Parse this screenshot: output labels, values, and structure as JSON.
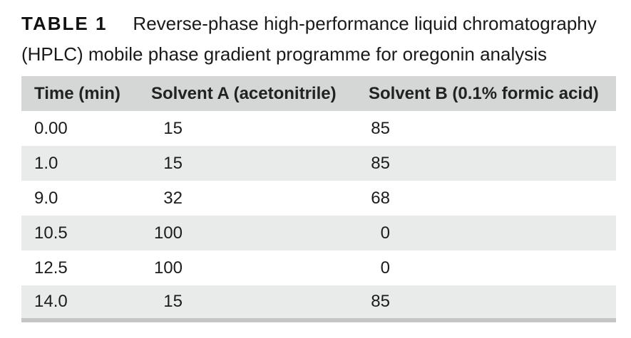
{
  "caption": {
    "label": "TABLE 1",
    "text": "Reverse-phase high-performance liquid chromatography (HPLC) mobile phase gradient programme for oregonin analysis"
  },
  "table": {
    "columns": [
      "Time (min)",
      "Solvent A (acetonitrile)",
      "Solvent B (0.1% formic acid)"
    ],
    "rows": [
      [
        "0.00",
        "15",
        "85"
      ],
      [
        "1.0",
        "15",
        "85"
      ],
      [
        "9.0",
        "32",
        "68"
      ],
      [
        "10.5",
        "100",
        "0"
      ],
      [
        "12.5",
        "100",
        "0"
      ],
      [
        "14.0",
        "15",
        "85"
      ]
    ]
  },
  "colors": {
    "header_background": "#d5d6d6",
    "stripe_background": "#e9eaea",
    "bottom_rule": "#c5c6c6",
    "text": "#1c1c1c"
  }
}
